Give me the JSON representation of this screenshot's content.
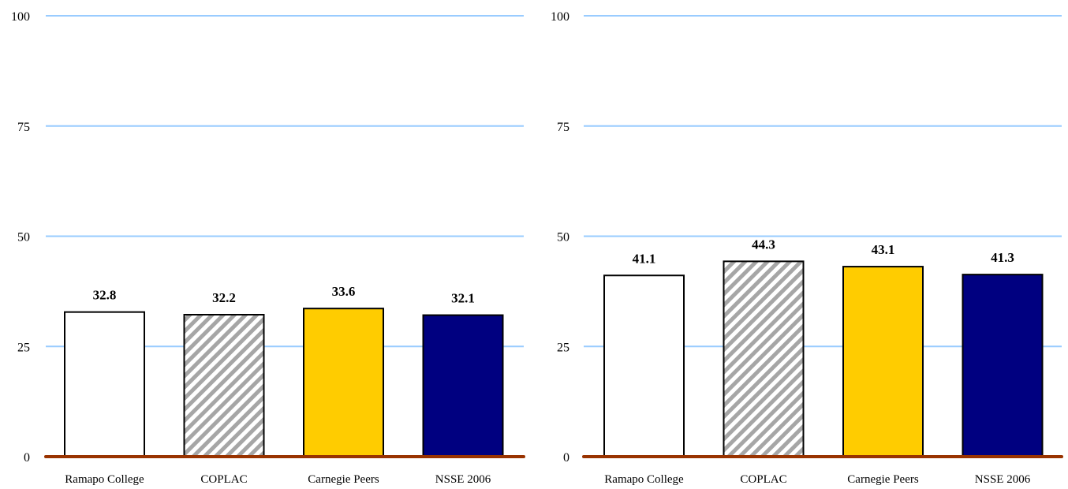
{
  "chart_data": [
    {
      "type": "bar",
      "categories": [
        "Ramapo College",
        "COPLAC",
        "Carnegie Peers",
        "NSSE 2006"
      ],
      "values": [
        32.8,
        32.2,
        33.6,
        32.1
      ],
      "data_labels": [
        "32.8",
        "32.2",
        "33.6",
        "32.1"
      ],
      "ylim": [
        0,
        100
      ],
      "yticks": [
        0,
        25,
        50,
        75,
        100
      ],
      "ytick_labels": [
        "0",
        "25",
        "50",
        "75",
        "100"
      ],
      "grid": true,
      "legend": "none"
    },
    {
      "type": "bar",
      "categories": [
        "Ramapo College",
        "COPLAC",
        "Carnegie Peers",
        "NSSE 2006"
      ],
      "values": [
        41.1,
        44.3,
        43.1,
        41.3
      ],
      "data_labels": [
        "41.1",
        "44.3",
        "43.1",
        "41.3"
      ],
      "ylim": [
        0,
        100
      ],
      "yticks": [
        0,
        25,
        50,
        75,
        100
      ],
      "ytick_labels": [
        "0",
        "25",
        "50",
        "75",
        "100"
      ],
      "grid": true,
      "legend": "none"
    }
  ],
  "colors": {
    "gridline": "#99ccff",
    "baseline": "#993300",
    "bar_outline": "#000000",
    "ramapo_fill": "#ffffff",
    "coplac_hatch": "#a6a6a6",
    "carnegie_fill": "#ffcc00",
    "nsse_fill": "#000080"
  }
}
